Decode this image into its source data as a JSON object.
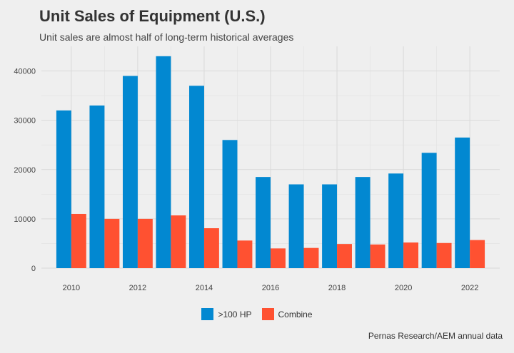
{
  "chart_data": {
    "type": "bar",
    "title": "Unit Sales of Equipment (U.S.)",
    "subtitle": "Unit sales are almost half of long-term historical averages",
    "caption": "Pernas Research/AEM annual data",
    "xlabel": "",
    "ylabel": "",
    "categories": [
      2010,
      2011,
      2012,
      2013,
      2014,
      2015,
      2016,
      2017,
      2018,
      2019,
      2020,
      2021,
      2022
    ],
    "series": [
      {
        "name": ">100 HP",
        "color": "#0288d1",
        "values": [
          32000,
          33000,
          39000,
          43000,
          37000,
          26000,
          18500,
          17000,
          17000,
          18500,
          19200,
          23400,
          26500
        ]
      },
      {
        "name": "Combine",
        "color": "#ff5131",
        "values": [
          11000,
          10000,
          10000,
          10700,
          8100,
          5600,
          4000,
          4100,
          4900,
          4800,
          5200,
          5100,
          5700
        ]
      }
    ],
    "xticks": [
      2010,
      2012,
      2014,
      2016,
      2018,
      2020,
      2022
    ],
    "yticks": [
      0,
      10000,
      20000,
      30000,
      40000
    ],
    "ylim": [
      0,
      45000
    ],
    "xlim": [
      2009.1,
      2022.9
    ],
    "grid": true,
    "legend_position": "bottom"
  }
}
